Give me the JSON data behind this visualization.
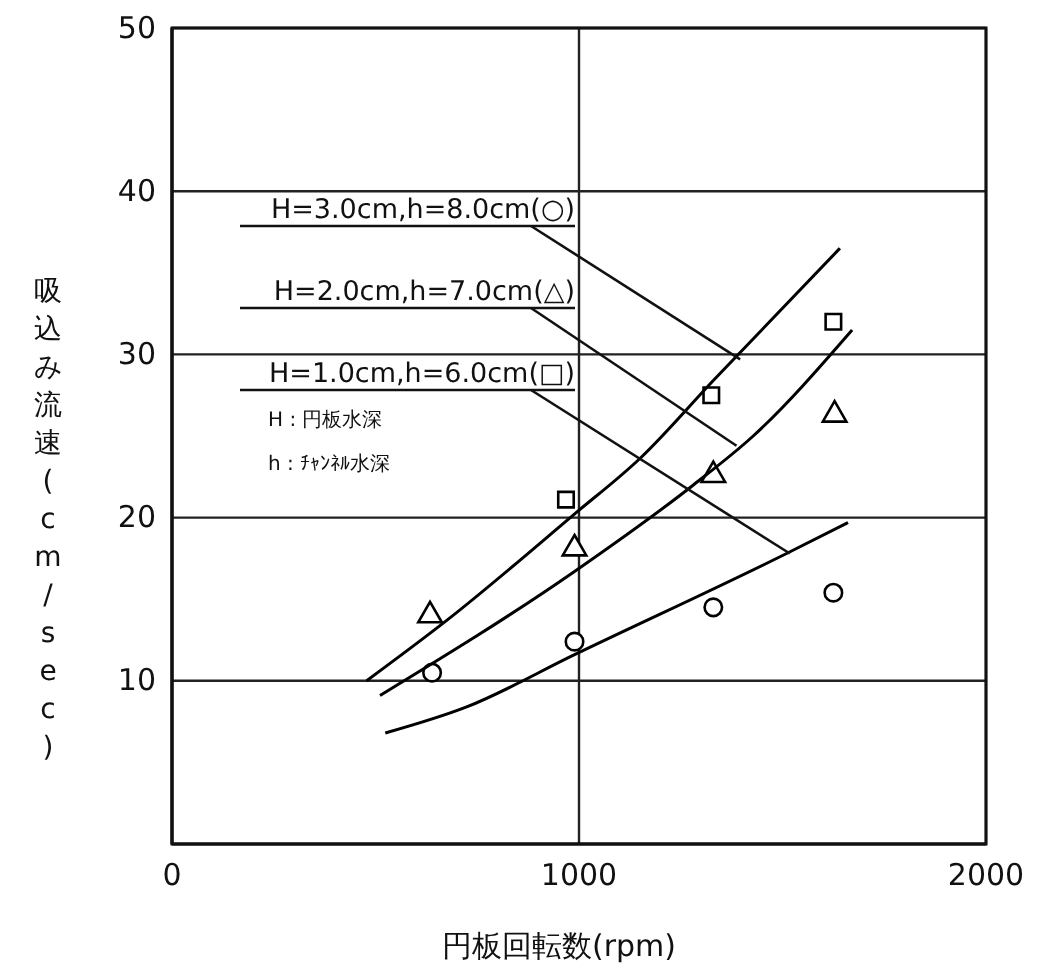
{
  "chart_data": {
    "type": "scatter",
    "xlabel": "円板回転数(rpm)",
    "ylabel": "吸込み流速(cm/sec)",
    "xlim": [
      0,
      2000
    ],
    "xticks": [
      0,
      1000,
      2000
    ],
    "ylim": [
      0,
      50
    ],
    "yticks": [
      10,
      20,
      30,
      40,
      50
    ],
    "grid": true,
    "series": [
      {
        "marker": "circle",
        "color": "#000000",
        "x": [
          639,
          989,
          1330,
          1625
        ],
        "values": [
          10.5,
          12.4,
          14.5,
          15.4
        ]
      },
      {
        "marker": "triangle",
        "color": "#000000",
        "x": [
          634,
          989,
          1330,
          1628
        ],
        "values": [
          14.0,
          18.1,
          22.6,
          26.3
        ]
      },
      {
        "marker": "square",
        "color": "#000000",
        "x": [
          968,
          1325,
          1625
        ],
        "values": [
          21.1,
          27.5,
          32.0
        ]
      },
      {
        "type": "line",
        "marker": "none",
        "color": "#000000",
        "x": [
          478,
          675,
          988,
          1153,
          1330,
          1641
        ],
        "values": [
          10.0,
          13.7,
          20.2,
          23.7,
          28.4,
          36.5
        ]
      },
      {
        "type": "line",
        "marker": "none",
        "color": "#000000",
        "x": [
          511,
          989,
          1281,
          1428,
          1671
        ],
        "values": [
          9.1,
          16.7,
          22.0,
          25.0,
          31.5
        ]
      },
      {
        "type": "line",
        "marker": "none",
        "color": "#000000",
        "x": [
          524,
          724,
          989,
          1510,
          1661
        ],
        "values": [
          6.8,
          8.4,
          11.6,
          17.8,
          19.7
        ]
      }
    ],
    "annotations": [
      {
        "text": "H=3.0cm,h=8.0cm(○)",
        "x": 1396,
        "y": 29.7
      },
      {
        "text": "H=2.0cm,h=7.0cm(△)",
        "x": 1387,
        "y": 24.4
      },
      {
        "text": "H=1.0cm,h=6.0cm(□)",
        "x": 1518,
        "y": 17.8
      },
      "H : 円板水深",
      "h : ﾁｬﾝﾈﾙ水深"
    ]
  }
}
